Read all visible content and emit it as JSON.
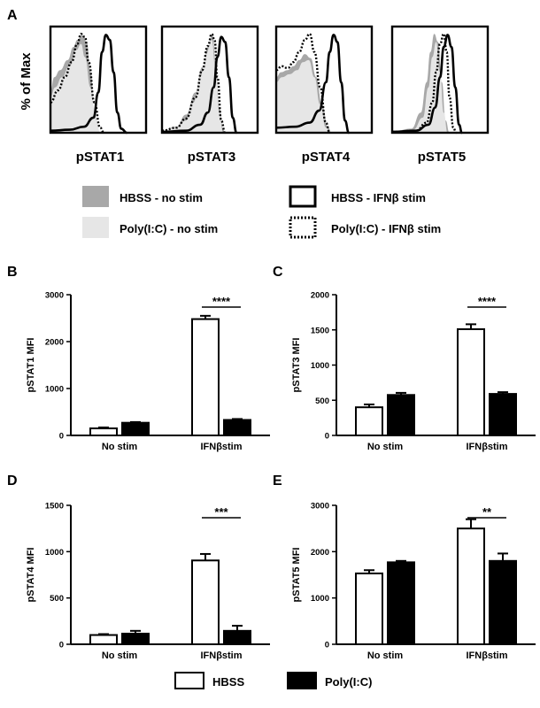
{
  "panels": {
    "A": "A",
    "B": "B",
    "C": "C",
    "D": "D",
    "E": "E"
  },
  "flow": {
    "ylabel": "% of Max",
    "histograms": [
      {
        "label": "pSTAT1"
      },
      {
        "label": "pSTAT3"
      },
      {
        "label": "pSTAT4"
      },
      {
        "label": "pSTAT5"
      }
    ],
    "legend": [
      {
        "label": "HBSS - no stim",
        "style": "dark-gray-fill"
      },
      {
        "label": "Poly(I:C) - no stim",
        "style": "light-gray-fill"
      },
      {
        "label": "HBSS - IFNβ stim",
        "style": "solid-black-line"
      },
      {
        "label": "Poly(I:C) - IFNβ stim",
        "style": "dotted-black-line"
      }
    ]
  },
  "colors": {
    "hbss_nostim": "#a8a8a8",
    "polyic_nostim": "#e6e6e6",
    "hbss_bar": "#ffffff",
    "polyic_bar": "#000000"
  },
  "chart_data": [
    {
      "panel": "B",
      "type": "bar",
      "ylabel": "pSTAT1 MFI",
      "categories": [
        "No stim",
        "IFNβstim"
      ],
      "series": [
        {
          "name": "HBSS",
          "values": [
            150,
            2480
          ],
          "errors": [
            20,
            70
          ]
        },
        {
          "name": "Poly(I:C)",
          "values": [
            270,
            330
          ],
          "errors": [
            15,
            20
          ]
        }
      ],
      "ylim": [
        0,
        3000
      ],
      "yticks": [
        0,
        1000,
        2000,
        3000
      ],
      "significance": {
        "category": "IFNβstim",
        "label": "****"
      }
    },
    {
      "panel": "C",
      "type": "bar",
      "ylabel": "pSTAT3 MFI",
      "categories": [
        "No stim",
        "IFNβstim"
      ],
      "series": [
        {
          "name": "HBSS",
          "values": [
            400,
            1510
          ],
          "errors": [
            40,
            70
          ]
        },
        {
          "name": "Poly(I:C)",
          "values": [
            575,
            590
          ],
          "errors": [
            30,
            25
          ]
        }
      ],
      "ylim": [
        0,
        2000
      ],
      "yticks": [
        0,
        500,
        1000,
        1500,
        2000
      ],
      "significance": {
        "category": "IFNβstim",
        "label": "****"
      }
    },
    {
      "panel": "D",
      "type": "bar",
      "ylabel": "pSTAT4 MFI",
      "categories": [
        "No stim",
        "IFNβstim"
      ],
      "series": [
        {
          "name": "HBSS",
          "values": [
            100,
            905
          ],
          "errors": [
            10,
            70
          ]
        },
        {
          "name": "Poly(I:C)",
          "values": [
            115,
            145
          ],
          "errors": [
            30,
            55
          ]
        }
      ],
      "ylim": [
        0,
        1500
      ],
      "yticks": [
        0,
        500,
        1000,
        1500
      ],
      "significance": {
        "category": "IFNβstim",
        "label": "***"
      }
    },
    {
      "panel": "E",
      "type": "bar",
      "ylabel": "pSTAT5 MFI",
      "categories": [
        "No stim",
        "IFNβstim"
      ],
      "series": [
        {
          "name": "HBSS",
          "values": [
            1530,
            2500
          ],
          "errors": [
            70,
            200
          ]
        },
        {
          "name": "Poly(I:C)",
          "values": [
            1770,
            1800
          ],
          "errors": [
            30,
            160
          ]
        }
      ],
      "ylim": [
        0,
        3000
      ],
      "yticks": [
        0,
        1000,
        2000,
        3000
      ],
      "significance": {
        "category": "IFNβstim",
        "label": "**"
      }
    }
  ],
  "bar_legend": [
    {
      "label": "HBSS",
      "color": "#ffffff"
    },
    {
      "label": "Poly(I:C)",
      "color": "#000000"
    }
  ]
}
